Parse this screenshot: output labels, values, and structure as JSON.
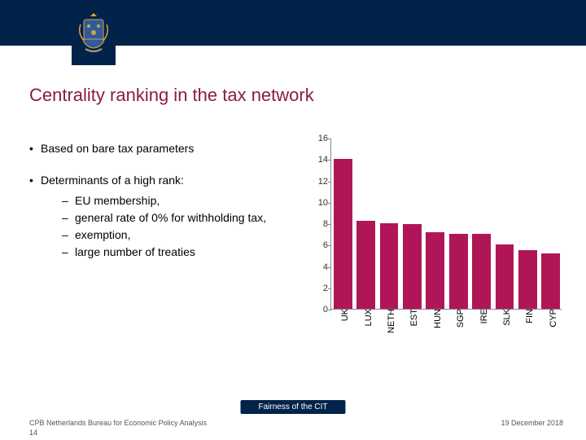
{
  "header": {
    "band_color": "#01234a",
    "logo_name": "netherlands-coat-of-arms"
  },
  "title": "Centrality ranking in the tax network",
  "title_color": "#8a1e3c",
  "bullets": {
    "item1": "Based on bare tax parameters",
    "item2": "Determinants of a high rank:",
    "sub1": "EU membership,",
    "sub2": "general rate of 0% for withholding tax,",
    "sub3": "exemption,",
    "sub4": "large number of treaties"
  },
  "chart": {
    "type": "bar",
    "ymax": 16,
    "ytick_step": 2,
    "yticks": [
      "0",
      "2",
      "4",
      "6",
      "8",
      "10",
      "12",
      "14",
      "16"
    ],
    "bar_color": "#b01657",
    "axis_color": "#888888",
    "categories": [
      "UK",
      "LUX",
      "NETH",
      "EST",
      "HUN",
      "SGP",
      "IRE",
      "SLK",
      "FIN",
      "CYP"
    ],
    "values": [
      14,
      8.2,
      8,
      7.9,
      7.2,
      7,
      7,
      6,
      5.5,
      5.2
    ],
    "label_fontsize": 11
  },
  "footer": {
    "org": "CPB Netherlands Bureau for Economic Policy Analysis",
    "slide_no": "14",
    "center": "Fairness of the CIT",
    "date": "19 December 2018"
  }
}
